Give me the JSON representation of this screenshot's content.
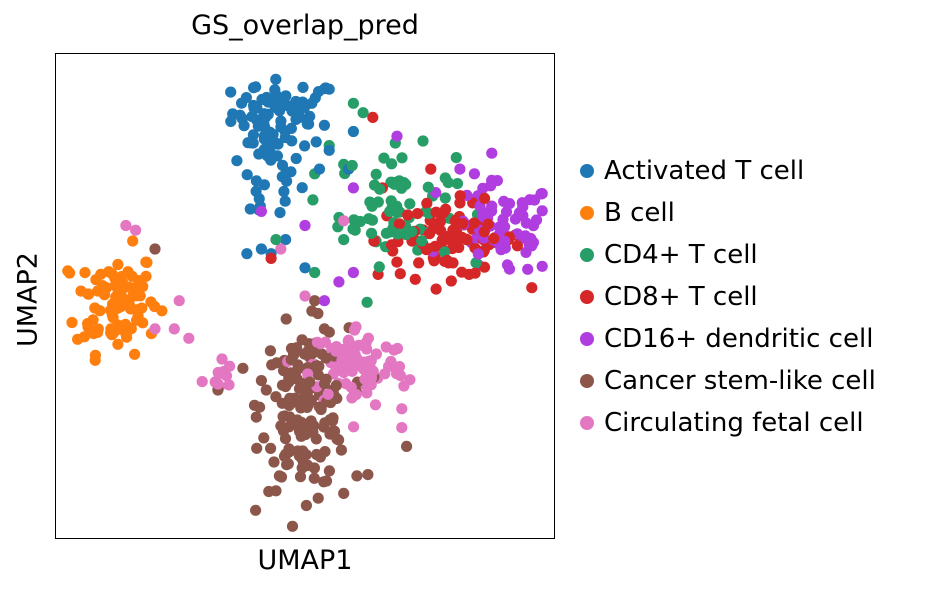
{
  "chart_data": {
    "type": "scatter",
    "title": "GS_overlap_pred",
    "xlabel": "UMAP1",
    "ylabel": "UMAP2",
    "xlim": [
      0,
      10
    ],
    "ylim": [
      0,
      10
    ],
    "grid": false,
    "ticks": false,
    "legend_position": "right",
    "series": [
      {
        "name": "Activated T cell",
        "color": "#1f77b4",
        "clusters": [
          {
            "cx": 4.6,
            "cy": 8.9,
            "sx": 0.55,
            "sy": 0.35,
            "n": 60
          },
          {
            "cx": 4.2,
            "cy": 7.7,
            "sx": 0.35,
            "sy": 0.7,
            "n": 40
          }
        ],
        "points": [
          [
            3.8,
            5.9
          ],
          [
            4.1,
            6.0
          ],
          [
            4.3,
            5.9
          ],
          [
            4.6,
            6.2
          ],
          [
            5.0,
            5.6
          ],
          [
            5.3,
            7.7
          ],
          [
            5.5,
            8.1
          ],
          [
            5.9,
            7.7
          ],
          [
            6.0,
            8.5
          ]
        ]
      },
      {
        "name": "B cell",
        "color": "#ff7f0e",
        "clusters": [
          {
            "cx": 1.1,
            "cy": 4.9,
            "sx": 0.42,
            "sy": 0.55,
            "n": 95
          }
        ],
        "points": []
      },
      {
        "name": "CD4+ T cell",
        "color": "#279e68",
        "clusters": [
          {
            "cx": 6.9,
            "cy": 6.9,
            "sx": 0.6,
            "sy": 0.6,
            "n": 70
          }
        ],
        "points": [
          [
            6.0,
            9.1
          ],
          [
            6.2,
            8.9
          ],
          [
            5.5,
            8.2
          ],
          [
            5.8,
            7.8
          ],
          [
            5.2,
            7.6
          ],
          [
            4.4,
            6.2
          ],
          [
            5.2,
            5.5
          ],
          [
            5.8,
            6.2
          ]
        ]
      },
      {
        "name": "CD8+ T cell",
        "color": "#d62728",
        "clusters": [
          {
            "cx": 8.0,
            "cy": 6.2,
            "sx": 0.75,
            "sy": 0.4,
            "n": 95
          }
        ],
        "points": [
          [
            6.4,
            8.8
          ],
          [
            7.6,
            7.7
          ],
          [
            4.3,
            5.8
          ],
          [
            6.6,
            7.3
          ]
        ]
      },
      {
        "name": "CD16+ dendritic cell",
        "color": "#b03de0",
        "clusters": [
          {
            "cx": 9.1,
            "cy": 6.4,
            "sx": 0.55,
            "sy": 0.5,
            "n": 65
          }
        ],
        "points": [
          [
            6.9,
            8.4
          ],
          [
            7.7,
            7.2
          ],
          [
            8.2,
            7.7
          ],
          [
            8.5,
            7.6
          ],
          [
            9.5,
            6.9
          ],
          [
            6.0,
            7.3
          ],
          [
            5.7,
            5.3
          ],
          [
            6.0,
            5.5
          ],
          [
            5.4,
            4.9
          ],
          [
            4.1,
            6.8
          ],
          [
            5.0,
            6.5
          ]
        ]
      },
      {
        "name": "Cancer stem-like cell",
        "color": "#8c564b",
        "clusters": [
          {
            "cx": 5.0,
            "cy": 2.6,
            "sx": 0.45,
            "sy": 0.85,
            "n": 170
          }
        ],
        "points": [
          [
            1.9,
            6.0
          ],
          [
            5.2,
            4.9
          ],
          [
            5.4,
            4.3
          ],
          [
            4.2,
            3.0
          ],
          [
            4.1,
            3.2
          ],
          [
            3.2,
            3.0
          ],
          [
            7.1,
            1.8
          ],
          [
            6.3,
            1.2
          ],
          [
            5.8,
            0.8
          ]
        ]
      },
      {
        "name": "Circulating fetal cell",
        "color": "#e377c2",
        "clusters": [
          {
            "cx": 6.1,
            "cy": 3.5,
            "sx": 0.5,
            "sy": 0.45,
            "n": 90
          },
          {
            "cx": 3.2,
            "cy": 3.3,
            "sx": 0.15,
            "sy": 0.2,
            "n": 12
          }
        ],
        "points": [
          [
            1.3,
            6.5
          ],
          [
            1.5,
            6.4
          ],
          [
            2.4,
            4.9
          ],
          [
            2.3,
            4.3
          ],
          [
            2.6,
            4.1
          ],
          [
            1.9,
            4.3
          ],
          [
            5.0,
            5.0
          ],
          [
            7.0,
            2.6
          ],
          [
            7.0,
            2.2
          ],
          [
            4.5,
            6.0
          ],
          [
            5.8,
            6.6
          ]
        ]
      }
    ]
  }
}
